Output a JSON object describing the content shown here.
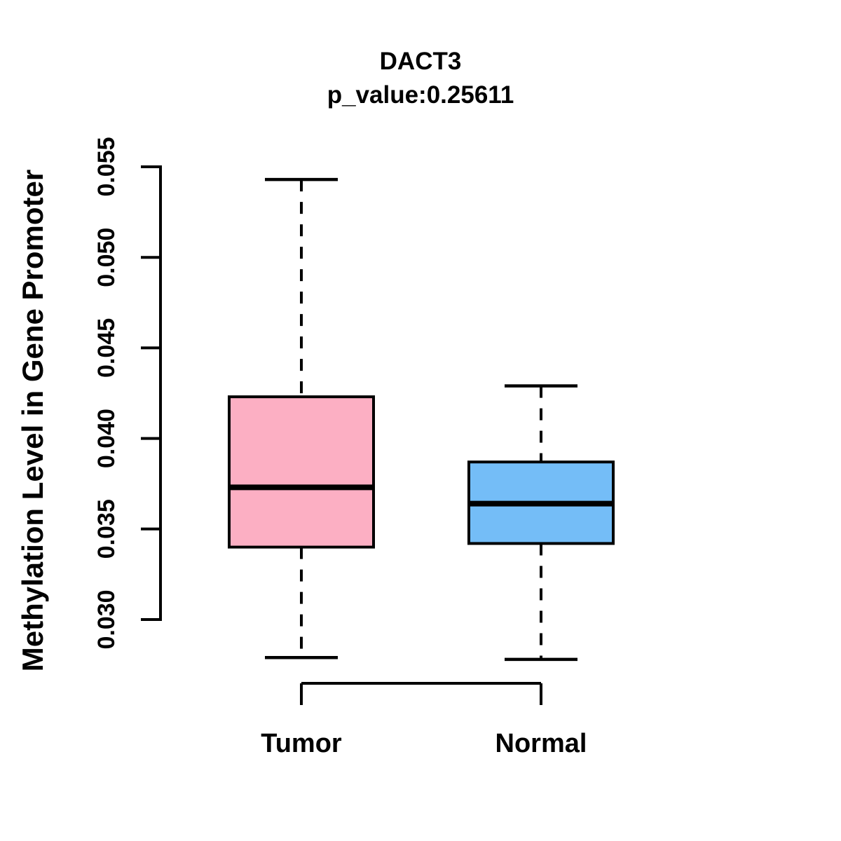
{
  "chart_data": {
    "type": "boxplot",
    "title": "DACT3",
    "subtitle": "p_value:0.25611",
    "p_value": "0.25611",
    "ylabel": "Methylation Level in Gene Promoter",
    "xlabel": "",
    "ylim": [
      0.03,
      0.055
    ],
    "grid": false,
    "legend_position": "none",
    "axis_color": "#000000",
    "yticks": [
      {
        "value": 0.03,
        "label": "0.030"
      },
      {
        "value": 0.035,
        "label": "0.035"
      },
      {
        "value": 0.04,
        "label": "0.040"
      },
      {
        "value": 0.045,
        "label": "0.045"
      },
      {
        "value": 0.05,
        "label": "0.050"
      },
      {
        "value": 0.055,
        "label": "0.055"
      }
    ],
    "groups": [
      {
        "label": "Tumor",
        "color": "#FCAFC3",
        "whisker_low": 0.0279,
        "q1": 0.034,
        "median": 0.0373,
        "q3": 0.0423,
        "whisker_high": 0.0543
      },
      {
        "label": "Normal",
        "color": "#74BDF7",
        "whisker_low": 0.0278,
        "q1": 0.0342,
        "median": 0.0364,
        "q3": 0.0387,
        "whisker_high": 0.0429
      }
    ]
  }
}
